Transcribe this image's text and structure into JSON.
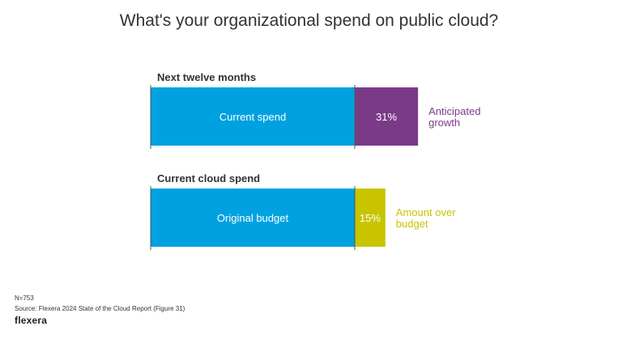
{
  "title": "What's your organizational spend on public cloud?",
  "chart_data": {
    "type": "bar",
    "orientation": "horizontal",
    "stacked": true,
    "groups": [
      {
        "label": "Next twelve months",
        "base": {
          "label": "Current spend",
          "value": 100,
          "color": "#00a1e0"
        },
        "extra": {
          "value": 31,
          "value_label": "31%",
          "color": "#7b3a88",
          "annotation": [
            "Anticipated",
            "growth"
          ]
        }
      },
      {
        "label": "Current cloud spend",
        "base": {
          "label": "Original budget",
          "value": 100,
          "color": "#00a1e0"
        },
        "extra": {
          "value": 15,
          "value_label": "15%",
          "color": "#c8c400",
          "annotation": [
            "Amount over",
            "budget"
          ]
        }
      }
    ]
  },
  "footer": {
    "n": "N=753",
    "source": "Source: Flexera 2024 State of the Cloud Report (Figure 31)",
    "logo": "flexera"
  }
}
